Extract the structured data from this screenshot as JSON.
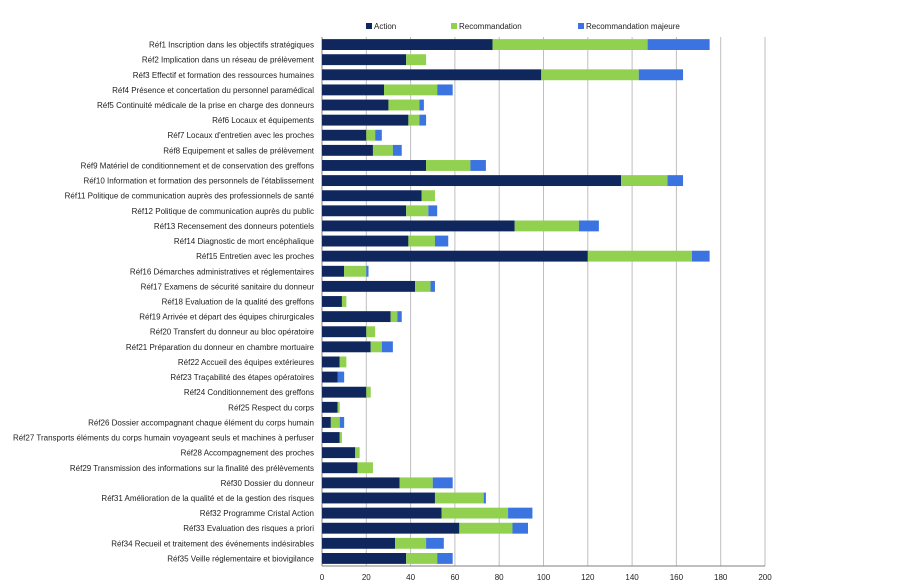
{
  "chart_data": {
    "type": "bar",
    "orientation": "horizontal",
    "stacked": true,
    "legend_position": "top",
    "grid": true,
    "xlim": [
      0,
      200
    ],
    "xticks": [
      0,
      20,
      40,
      60,
      80,
      100,
      120,
      140,
      160,
      180,
      200
    ],
    "categories": [
      "Réf1 Inscription dans les objectifs stratégiques",
      "Réf2 Implication dans un réseau de prélèvement",
      "Réf3 Effectif et formation des ressources humaines",
      "Réf4 Présence et concertation du personnel paramédical",
      "Réf5 Continuité médicale de la prise en charge des donneurs",
      "Réf6 Locaux et équipements",
      "Réf7 Locaux d'entretien avec les proches",
      "Réf8 Equipement et salles de prélèvement",
      "Réf9 Matériel de conditionnement et de conservation des greffons",
      "Réf10 Information et formation des personnels de l'établissement",
      "Réf11 Politique de communication auprès des professionnels de santé",
      "Réf12 Politique de communication auprès du public",
      "Réf13 Recensement des donneurs potentiels",
      "Réf14 Diagnostic de mort encéphalique",
      "Réf15 Entretien avec les proches",
      "Réf16 Démarches administratives et réglementaires",
      "Réf17 Examens de sécurité sanitaire du donneur",
      "Réf18 Evaluation de la qualité des greffons",
      "Réf19 Arrivée et départ des équipes chirurgicales",
      "Réf20 Transfert du donneur au bloc opératoire",
      "Réf21 Préparation du donneur en chambre mortuaire",
      "Réf22 Accueil des équipes extérieures",
      "Réf23 Traçabilité des étapes opératoires",
      "Réf24 Conditionnement des greffons",
      "Réf25 Respect du corps",
      "Réf26 Dossier accompagnant chaque élément du corps humain",
      "Réf27 Transports éléments du corps humain voyageant seuls et machines à perfuser",
      "Réf28 Accompagnement des proches",
      "Réf29 Transmission des informations sur la finalité des prélèvements",
      "Réf30 Dossier du donneur",
      "Réf31 Amélioration de la qualité et de la gestion des risques",
      "Réf32 Programme Cristal Action",
      "Réf33 Evaluation des risques a priori",
      "Réf34 Recueil et traitement des événements indésirables",
      "Réf35 Veille réglementaire et biovigilance"
    ],
    "series": [
      {
        "name": "Action",
        "color": "#10275e",
        "values": [
          77,
          38,
          99,
          28,
          30,
          39,
          20,
          23,
          47,
          135,
          45,
          38,
          87,
          39,
          120,
          10,
          42,
          9,
          31,
          20,
          22,
          8,
          7,
          20,
          7,
          4,
          8,
          15,
          16,
          35,
          51,
          54,
          62,
          33,
          38
        ]
      },
      {
        "name": "Recommandation",
        "color": "#92d050",
        "values": [
          70,
          9,
          44,
          24,
          14,
          5,
          4,
          9,
          20,
          21,
          6,
          10,
          29,
          12,
          47,
          10,
          7,
          2,
          3,
          4,
          5,
          3,
          0,
          2,
          1,
          4,
          1,
          2,
          7,
          15,
          22,
          30,
          24,
          14,
          14
        ]
      },
      {
        "name": "Recommandation majeure",
        "color": "#3b74e0",
        "values": [
          28,
          0,
          20,
          7,
          2,
          3,
          3,
          4,
          7,
          7,
          0,
          4,
          9,
          6,
          8,
          1,
          2,
          0,
          2,
          0,
          5,
          0,
          3,
          0,
          0,
          2,
          0,
          0,
          0,
          9,
          1,
          11,
          7,
          8,
          7
        ]
      }
    ]
  }
}
